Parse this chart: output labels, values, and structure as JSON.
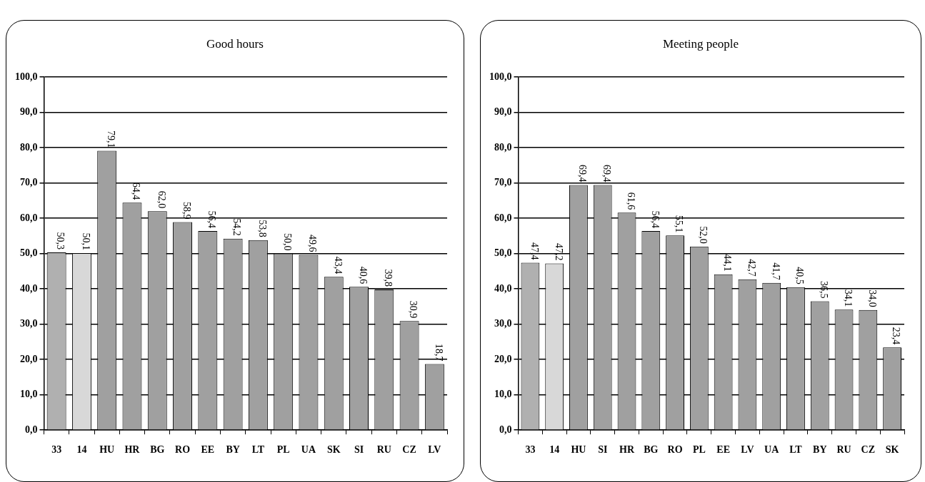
{
  "chart_data": [
    {
      "type": "bar",
      "title": "Good hours",
      "categories": [
        "33",
        "14",
        "HU",
        "HR",
        "BG",
        "RO",
        "EE",
        "BY",
        "LT",
        "PL",
        "UA",
        "SK",
        "SI",
        "RU",
        "CZ",
        "LV"
      ],
      "values": [
        50.3,
        50.1,
        79.1,
        64.4,
        62.0,
        58.9,
        56.4,
        54.2,
        53.8,
        50.0,
        49.6,
        43.4,
        40.6,
        39.8,
        30.9,
        18.7
      ],
      "colors": [
        "#b0b0b0",
        "#d8d8d8",
        "#a0a0a0",
        "#a0a0a0",
        "#a0a0a0",
        "#a0a0a0",
        "#a0a0a0",
        "#a0a0a0",
        "#a0a0a0",
        "#a0a0a0",
        "#a0a0a0",
        "#a0a0a0",
        "#a0a0a0",
        "#a0a0a0",
        "#a0a0a0",
        "#a0a0a0"
      ],
      "value_labels": [
        "50,3",
        "50,1",
        "79,1",
        "64,4",
        "62,0",
        "58,9",
        "56,4",
        "54,2",
        "53,8",
        "50,0",
        "49,6",
        "43,4",
        "40,6",
        "39,8",
        "30,9",
        "18,7"
      ],
      "ylim": [
        0,
        100
      ],
      "yticks": [
        {
          "value": 0,
          "label": "0,0"
        },
        {
          "value": 10,
          "label": "10,0"
        },
        {
          "value": 20,
          "label": "20,0"
        },
        {
          "value": 30,
          "label": "30,0"
        },
        {
          "value": 40,
          "label": "40,0"
        },
        {
          "value": 50,
          "label": "50,0"
        },
        {
          "value": 60,
          "label": "60,0"
        },
        {
          "value": 70,
          "label": "70,0"
        },
        {
          "value": 80,
          "label": "80,0"
        },
        {
          "value": 90,
          "label": "90,0"
        },
        {
          "value": 100,
          "label": "100,0"
        }
      ],
      "grid": "y",
      "legend": false
    },
    {
      "type": "bar",
      "title": "Meeting people",
      "categories": [
        "33",
        "14",
        "HU",
        "SI",
        "HR",
        "BG",
        "RO",
        "PL",
        "EE",
        "LV",
        "UA",
        "LT",
        "BY",
        "RU",
        "CZ",
        "SK"
      ],
      "values": [
        47.4,
        47.2,
        69.4,
        69.4,
        61.6,
        56.4,
        55.1,
        52.0,
        44.1,
        42.7,
        41.7,
        40.5,
        36.5,
        34.1,
        34.0,
        23.4
      ],
      "colors": [
        "#b0b0b0",
        "#d8d8d8",
        "#a0a0a0",
        "#a0a0a0",
        "#a0a0a0",
        "#a0a0a0",
        "#a0a0a0",
        "#a0a0a0",
        "#a0a0a0",
        "#a0a0a0",
        "#a0a0a0",
        "#a0a0a0",
        "#a0a0a0",
        "#a0a0a0",
        "#a0a0a0",
        "#a0a0a0"
      ],
      "value_labels": [
        "47,4",
        "47,2",
        "69,4",
        "69,4",
        "61,6",
        "56,4",
        "55,1",
        "52,0",
        "44,1",
        "42,7",
        "41,7",
        "40,5",
        "36,5",
        "34,1",
        "34,0",
        "23,4"
      ],
      "ylim": [
        0,
        100
      ],
      "yticks": [
        {
          "value": 0,
          "label": "0,0"
        },
        {
          "value": 10,
          "label": "10,0"
        },
        {
          "value": 20,
          "label": "20,0"
        },
        {
          "value": 30,
          "label": "30,0"
        },
        {
          "value": 40,
          "label": "40,0"
        },
        {
          "value": 50,
          "label": "50,0"
        },
        {
          "value": 60,
          "label": "60,0"
        },
        {
          "value": 70,
          "label": "70,0"
        },
        {
          "value": 80,
          "label": "80,0"
        },
        {
          "value": 90,
          "label": "90,0"
        },
        {
          "value": 100,
          "label": "100,0"
        }
      ],
      "grid": "y",
      "legend": false
    }
  ]
}
